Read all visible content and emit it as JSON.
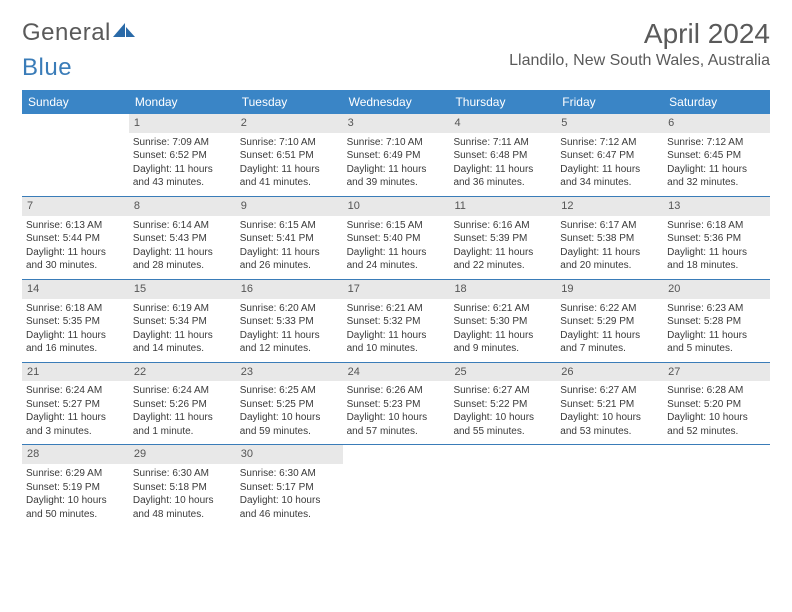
{
  "logo": {
    "text1": "General",
    "text2": "Blue"
  },
  "title": "April 2024",
  "location": "Llandilo, New South Wales, Australia",
  "colors": {
    "header_bg": "#3a85c6",
    "header_text": "#ffffff",
    "daynum_bg": "#e8e8e8",
    "week_border": "#3a7cb8",
    "text": "#3a3a3a",
    "title_color": "#5a5a5a"
  },
  "fonts": {
    "title_pt": 28,
    "location_pt": 16,
    "dayheader_pt": 12,
    "cell_pt": 10
  },
  "dayNames": [
    "Sunday",
    "Monday",
    "Tuesday",
    "Wednesday",
    "Thursday",
    "Friday",
    "Saturday"
  ],
  "weeks": [
    [
      {
        "n": "",
        "sr": "",
        "ss": "",
        "dl": ""
      },
      {
        "n": "1",
        "sr": "Sunrise: 7:09 AM",
        "ss": "Sunset: 6:52 PM",
        "dl": "Daylight: 11 hours and 43 minutes."
      },
      {
        "n": "2",
        "sr": "Sunrise: 7:10 AM",
        "ss": "Sunset: 6:51 PM",
        "dl": "Daylight: 11 hours and 41 minutes."
      },
      {
        "n": "3",
        "sr": "Sunrise: 7:10 AM",
        "ss": "Sunset: 6:49 PM",
        "dl": "Daylight: 11 hours and 39 minutes."
      },
      {
        "n": "4",
        "sr": "Sunrise: 7:11 AM",
        "ss": "Sunset: 6:48 PM",
        "dl": "Daylight: 11 hours and 36 minutes."
      },
      {
        "n": "5",
        "sr": "Sunrise: 7:12 AM",
        "ss": "Sunset: 6:47 PM",
        "dl": "Daylight: 11 hours and 34 minutes."
      },
      {
        "n": "6",
        "sr": "Sunrise: 7:12 AM",
        "ss": "Sunset: 6:45 PM",
        "dl": "Daylight: 11 hours and 32 minutes."
      }
    ],
    [
      {
        "n": "7",
        "sr": "Sunrise: 6:13 AM",
        "ss": "Sunset: 5:44 PM",
        "dl": "Daylight: 11 hours and 30 minutes."
      },
      {
        "n": "8",
        "sr": "Sunrise: 6:14 AM",
        "ss": "Sunset: 5:43 PM",
        "dl": "Daylight: 11 hours and 28 minutes."
      },
      {
        "n": "9",
        "sr": "Sunrise: 6:15 AM",
        "ss": "Sunset: 5:41 PM",
        "dl": "Daylight: 11 hours and 26 minutes."
      },
      {
        "n": "10",
        "sr": "Sunrise: 6:15 AM",
        "ss": "Sunset: 5:40 PM",
        "dl": "Daylight: 11 hours and 24 minutes."
      },
      {
        "n": "11",
        "sr": "Sunrise: 6:16 AM",
        "ss": "Sunset: 5:39 PM",
        "dl": "Daylight: 11 hours and 22 minutes."
      },
      {
        "n": "12",
        "sr": "Sunrise: 6:17 AM",
        "ss": "Sunset: 5:38 PM",
        "dl": "Daylight: 11 hours and 20 minutes."
      },
      {
        "n": "13",
        "sr": "Sunrise: 6:18 AM",
        "ss": "Sunset: 5:36 PM",
        "dl": "Daylight: 11 hours and 18 minutes."
      }
    ],
    [
      {
        "n": "14",
        "sr": "Sunrise: 6:18 AM",
        "ss": "Sunset: 5:35 PM",
        "dl": "Daylight: 11 hours and 16 minutes."
      },
      {
        "n": "15",
        "sr": "Sunrise: 6:19 AM",
        "ss": "Sunset: 5:34 PM",
        "dl": "Daylight: 11 hours and 14 minutes."
      },
      {
        "n": "16",
        "sr": "Sunrise: 6:20 AM",
        "ss": "Sunset: 5:33 PM",
        "dl": "Daylight: 11 hours and 12 minutes."
      },
      {
        "n": "17",
        "sr": "Sunrise: 6:21 AM",
        "ss": "Sunset: 5:32 PM",
        "dl": "Daylight: 11 hours and 10 minutes."
      },
      {
        "n": "18",
        "sr": "Sunrise: 6:21 AM",
        "ss": "Sunset: 5:30 PM",
        "dl": "Daylight: 11 hours and 9 minutes."
      },
      {
        "n": "19",
        "sr": "Sunrise: 6:22 AM",
        "ss": "Sunset: 5:29 PM",
        "dl": "Daylight: 11 hours and 7 minutes."
      },
      {
        "n": "20",
        "sr": "Sunrise: 6:23 AM",
        "ss": "Sunset: 5:28 PM",
        "dl": "Daylight: 11 hours and 5 minutes."
      }
    ],
    [
      {
        "n": "21",
        "sr": "Sunrise: 6:24 AM",
        "ss": "Sunset: 5:27 PM",
        "dl": "Daylight: 11 hours and 3 minutes."
      },
      {
        "n": "22",
        "sr": "Sunrise: 6:24 AM",
        "ss": "Sunset: 5:26 PM",
        "dl": "Daylight: 11 hours and 1 minute."
      },
      {
        "n": "23",
        "sr": "Sunrise: 6:25 AM",
        "ss": "Sunset: 5:25 PM",
        "dl": "Daylight: 10 hours and 59 minutes."
      },
      {
        "n": "24",
        "sr": "Sunrise: 6:26 AM",
        "ss": "Sunset: 5:23 PM",
        "dl": "Daylight: 10 hours and 57 minutes."
      },
      {
        "n": "25",
        "sr": "Sunrise: 6:27 AM",
        "ss": "Sunset: 5:22 PM",
        "dl": "Daylight: 10 hours and 55 minutes."
      },
      {
        "n": "26",
        "sr": "Sunrise: 6:27 AM",
        "ss": "Sunset: 5:21 PM",
        "dl": "Daylight: 10 hours and 53 minutes."
      },
      {
        "n": "27",
        "sr": "Sunrise: 6:28 AM",
        "ss": "Sunset: 5:20 PM",
        "dl": "Daylight: 10 hours and 52 minutes."
      }
    ],
    [
      {
        "n": "28",
        "sr": "Sunrise: 6:29 AM",
        "ss": "Sunset: 5:19 PM",
        "dl": "Daylight: 10 hours and 50 minutes."
      },
      {
        "n": "29",
        "sr": "Sunrise: 6:30 AM",
        "ss": "Sunset: 5:18 PM",
        "dl": "Daylight: 10 hours and 48 minutes."
      },
      {
        "n": "30",
        "sr": "Sunrise: 6:30 AM",
        "ss": "Sunset: 5:17 PM",
        "dl": "Daylight: 10 hours and 46 minutes."
      },
      {
        "n": "",
        "sr": "",
        "ss": "",
        "dl": ""
      },
      {
        "n": "",
        "sr": "",
        "ss": "",
        "dl": ""
      },
      {
        "n": "",
        "sr": "",
        "ss": "",
        "dl": ""
      },
      {
        "n": "",
        "sr": "",
        "ss": "",
        "dl": ""
      }
    ]
  ]
}
